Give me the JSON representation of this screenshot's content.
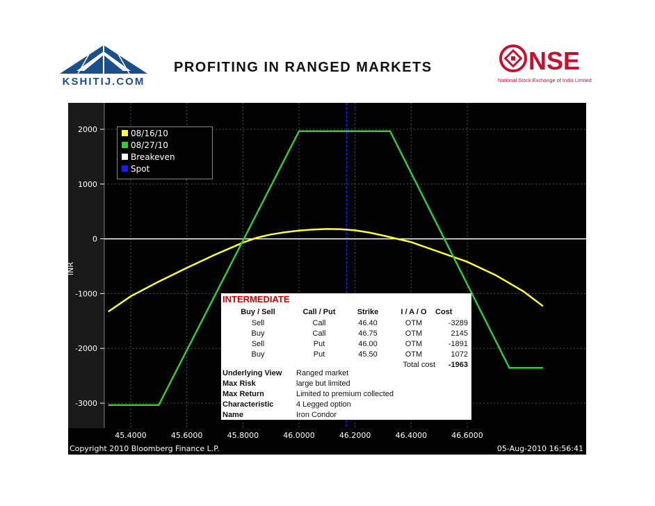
{
  "header": {
    "title": "PROFITING IN RANGED MARKETS",
    "logo_left": "KSHITIJ.COM",
    "logo_right_text": "NSE",
    "logo_right_sub": "National Stock Exchange of India Limited"
  },
  "chart_data": {
    "type": "line",
    "ylabel": "INR",
    "xlim": [
      45.32,
      46.87
    ],
    "ylim": [
      -3300,
      2100
    ],
    "x_ticks": [
      "45.4000",
      "45.6000",
      "45.8000",
      "46.0000",
      "46.2000",
      "46.4000",
      "46.6000"
    ],
    "x_tick_values": [
      45.4,
      45.6,
      45.8,
      46.0,
      46.2,
      46.4,
      46.6
    ],
    "y_ticks": [
      "2000",
      "1000",
      "0",
      "-1000",
      "-2000",
      "-3000"
    ],
    "y_tick_values": [
      2000,
      1000,
      0,
      -1000,
      -2000,
      -3000
    ],
    "grid": true,
    "legend_position": "top-left",
    "series": [
      {
        "name": "08/16/10",
        "color": "#ffff33",
        "x": [
          45.32,
          45.4,
          45.5,
          45.6,
          45.7,
          45.75,
          45.8,
          45.85,
          45.9,
          45.95,
          46.0,
          46.05,
          46.1,
          46.15,
          46.2,
          46.25,
          46.3,
          46.35,
          46.4,
          46.45,
          46.5,
          46.55,
          46.6,
          46.7,
          46.8,
          46.87
        ],
        "y": [
          -1330,
          -1050,
          -780,
          -530,
          -290,
          -180,
          -70,
          20,
          80,
          120,
          150,
          170,
          180,
          175,
          155,
          115,
          60,
          0,
          -60,
          -150,
          -240,
          -330,
          -420,
          -660,
          -960,
          -1230
        ]
      },
      {
        "name": "08/27/10",
        "color": "#33cc33",
        "x": [
          45.32,
          45.5,
          46.0,
          46.325,
          46.75,
          46.87
        ],
        "y": [
          -3035,
          -3035,
          1965,
          1965,
          -2355,
          -2355
        ]
      },
      {
        "name": "Breakeven",
        "color": "#ffffff",
        "y_value": 0
      },
      {
        "name": "Spot",
        "color": "#1a1aff",
        "x_value": 46.17
      }
    ]
  },
  "strategy": {
    "title": "INTERMEDIATE",
    "headers": [
      "Buy / Sell",
      "Call / Put",
      "Strike",
      "I / A / O",
      "Cost"
    ],
    "rows": [
      [
        "Sell",
        "Call",
        "46.40",
        "OTM",
        "-3289"
      ],
      [
        "Buy",
        "Call",
        "46.75",
        "OTM",
        "2145"
      ],
      [
        "Sell",
        "Put",
        "46.00",
        "OTM",
        "-1891"
      ],
      [
        "Buy",
        "Put",
        "45.50",
        "OTM",
        "1072"
      ]
    ],
    "total_label": "Total cost",
    "total_value": "-1963",
    "summary": [
      {
        "key": "Underlying View",
        "value": "Ranged market"
      },
      {
        "key": "Max Risk",
        "value": "large but limited"
      },
      {
        "key": "Max Return",
        "value": "Limited to premium collected"
      },
      {
        "key": "Characteristic",
        "value": "4 Legged option"
      },
      {
        "key": "Name",
        "value": "Iron Condor"
      }
    ]
  },
  "footer": {
    "copyright": "Copyright 2010 Bloomberg Finance L.P.",
    "timestamp": "05-Aug-2010 16:56:41"
  }
}
